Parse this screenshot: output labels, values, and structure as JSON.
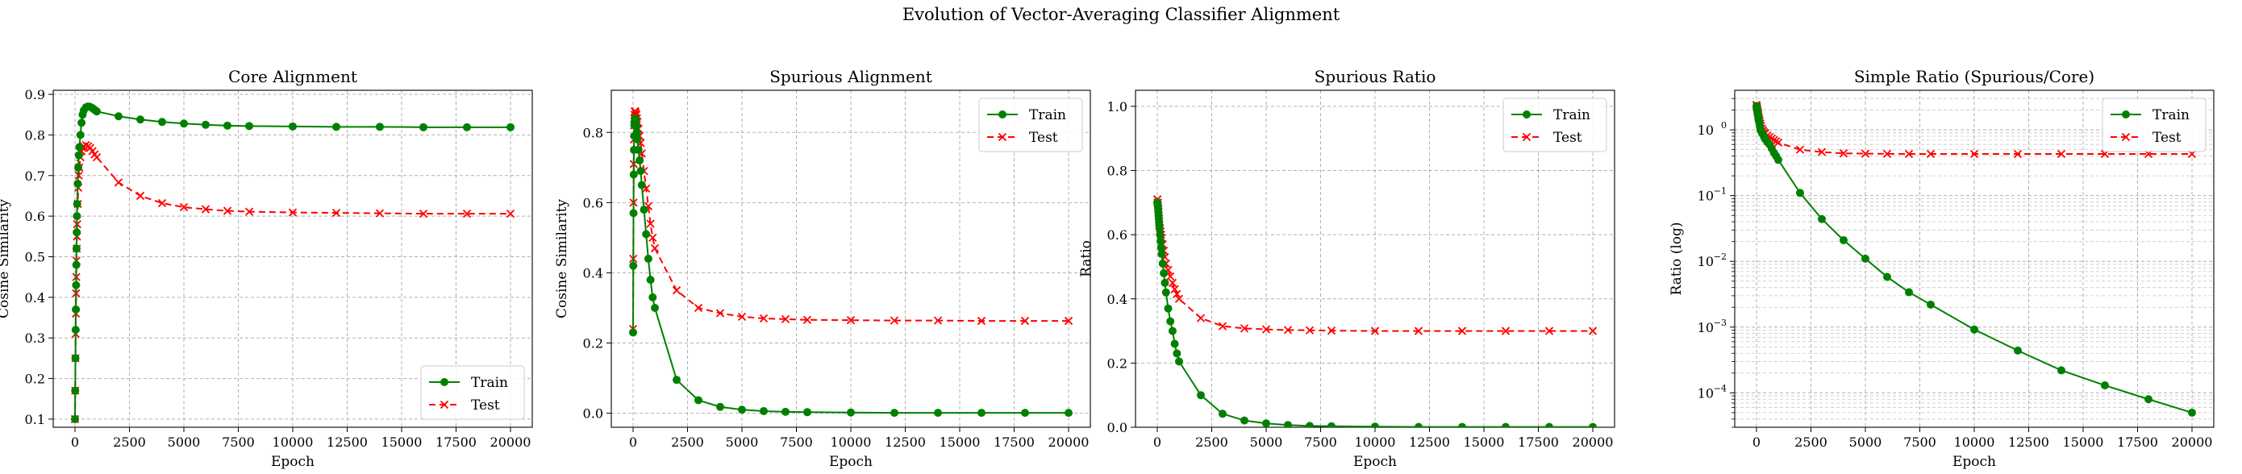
{
  "figure": {
    "title": "Evolution of Vector-Averaging Classifier Alignment"
  },
  "colors": {
    "train": "#008000",
    "test": "#ff0000",
    "grid": "#b0b0b0"
  },
  "chart_data": [
    {
      "type": "line",
      "title": "Core Alignment",
      "xlabel": "Epoch",
      "ylabel": "Cosine Similarity",
      "xlim": [
        -1000,
        21000
      ],
      "ylim": [
        0.08,
        0.91
      ],
      "xticks": [
        0,
        2500,
        5000,
        7500,
        10000,
        12500,
        15000,
        17500,
        20000
      ],
      "xtick_labels": [
        "0",
        "2500",
        "5000",
        "7500",
        "10000",
        "12500",
        "15000",
        "17500",
        "20000"
      ],
      "yticks": [
        0.1,
        0.2,
        0.3,
        0.4,
        0.5,
        0.6,
        0.7,
        0.8,
        0.9
      ],
      "ytick_labels": [
        "0.1",
        "0.2",
        "0.3",
        "0.4",
        "0.5",
        "0.6",
        "0.7",
        "0.8",
        "0.9"
      ],
      "yscale": "linear",
      "grid": true,
      "legend": "lower right",
      "series": [
        {
          "name": "Train",
          "color": "#008000",
          "marker": "circle",
          "linestyle": "solid",
          "x": [
            0,
            10,
            20,
            30,
            40,
            50,
            60,
            70,
            80,
            90,
            100,
            125,
            150,
            175,
            200,
            250,
            300,
            350,
            400,
            500,
            600,
            700,
            800,
            900,
            1000,
            2000,
            3000,
            4000,
            5000,
            6000,
            7000,
            8000,
            10000,
            12000,
            14000,
            16000,
            18000,
            20000
          ],
          "y": [
            0.1,
            0.17,
            0.25,
            0.32,
            0.37,
            0.43,
            0.48,
            0.52,
            0.56,
            0.6,
            0.63,
            0.68,
            0.72,
            0.75,
            0.77,
            0.8,
            0.83,
            0.85,
            0.86,
            0.868,
            0.87,
            0.869,
            0.866,
            0.862,
            0.858,
            0.846,
            0.838,
            0.832,
            0.828,
            0.825,
            0.823,
            0.822,
            0.821,
            0.82,
            0.82,
            0.819,
            0.819,
            0.819
          ]
        },
        {
          "name": "Test",
          "color": "#ff0000",
          "marker": "x",
          "linestyle": "dashed",
          "x": [
            0,
            10,
            20,
            30,
            40,
            50,
            60,
            70,
            80,
            90,
            100,
            125,
            150,
            175,
            200,
            250,
            300,
            350,
            400,
            500,
            600,
            700,
            800,
            900,
            1000,
            2000,
            3000,
            4000,
            5000,
            6000,
            7000,
            8000,
            10000,
            12000,
            14000,
            16000,
            18000,
            20000
          ],
          "y": [
            0.1,
            0.17,
            0.25,
            0.31,
            0.36,
            0.41,
            0.45,
            0.49,
            0.52,
            0.55,
            0.58,
            0.63,
            0.67,
            0.7,
            0.72,
            0.745,
            0.76,
            0.768,
            0.772,
            0.775,
            0.772,
            0.768,
            0.76,
            0.752,
            0.745,
            0.683,
            0.65,
            0.632,
            0.622,
            0.617,
            0.613,
            0.611,
            0.609,
            0.608,
            0.607,
            0.606,
            0.606,
            0.606
          ]
        }
      ]
    },
    {
      "type": "line",
      "title": "Spurious Alignment",
      "xlabel": "Epoch",
      "ylabel": "Cosine Similarity",
      "xlim": [
        -1000,
        21000
      ],
      "ylim": [
        -0.04,
        0.92
      ],
      "xticks": [
        0,
        2500,
        5000,
        7500,
        10000,
        12500,
        15000,
        17500,
        20000
      ],
      "xtick_labels": [
        "0",
        "2500",
        "5000",
        "7500",
        "10000",
        "12500",
        "15000",
        "17500",
        "20000"
      ],
      "yticks": [
        0.0,
        0.2,
        0.4,
        0.6,
        0.8
      ],
      "ytick_labels": [
        "0.0",
        "0.2",
        "0.4",
        "0.6",
        "0.8"
      ],
      "yscale": "linear",
      "grid": true,
      "legend": "upper right",
      "series": [
        {
          "name": "Train",
          "color": "#008000",
          "marker": "circle",
          "linestyle": "solid",
          "x": [
            0,
            10,
            20,
            30,
            40,
            50,
            60,
            70,
            80,
            90,
            100,
            125,
            150,
            175,
            200,
            250,
            300,
            350,
            400,
            500,
            600,
            700,
            800,
            900,
            1000,
            2000,
            3000,
            4000,
            5000,
            6000,
            7000,
            8000,
            10000,
            12000,
            14000,
            16000,
            18000,
            20000
          ],
          "y": [
            0.23,
            0.42,
            0.57,
            0.68,
            0.75,
            0.79,
            0.82,
            0.83,
            0.84,
            0.84,
            0.84,
            0.83,
            0.82,
            0.8,
            0.78,
            0.75,
            0.72,
            0.69,
            0.65,
            0.58,
            0.51,
            0.44,
            0.38,
            0.33,
            0.3,
            0.095,
            0.037,
            0.018,
            0.01,
            0.006,
            0.004,
            0.003,
            0.002,
            0.001,
            0.001,
            0.001,
            0.001,
            0.001
          ]
        },
        {
          "name": "Test",
          "color": "#ff0000",
          "marker": "x",
          "linestyle": "dashed",
          "x": [
            0,
            10,
            20,
            30,
            40,
            50,
            60,
            70,
            80,
            90,
            100,
            125,
            150,
            175,
            200,
            250,
            300,
            350,
            400,
            500,
            600,
            700,
            800,
            900,
            1000,
            2000,
            3000,
            4000,
            5000,
            6000,
            7000,
            8000,
            10000,
            12000,
            14000,
            16000,
            18000,
            20000
          ],
          "y": [
            0.24,
            0.44,
            0.6,
            0.71,
            0.78,
            0.82,
            0.84,
            0.85,
            0.86,
            0.86,
            0.86,
            0.855,
            0.85,
            0.84,
            0.83,
            0.81,
            0.79,
            0.77,
            0.74,
            0.69,
            0.64,
            0.59,
            0.54,
            0.5,
            0.47,
            0.35,
            0.3,
            0.285,
            0.275,
            0.27,
            0.268,
            0.266,
            0.265,
            0.264,
            0.264,
            0.263,
            0.263,
            0.263
          ]
        }
      ]
    },
    {
      "type": "line",
      "title": "Spurious Ratio",
      "xlabel": "Epoch",
      "ylabel": "Ratio",
      "xlim": [
        -1000,
        21000
      ],
      "ylim": [
        0.0,
        1.05
      ],
      "xticks": [
        0,
        2500,
        5000,
        7500,
        10000,
        12500,
        15000,
        17500,
        20000
      ],
      "xtick_labels": [
        "0",
        "2500",
        "5000",
        "7500",
        "10000",
        "12500",
        "15000",
        "17500",
        "20000"
      ],
      "yticks": [
        0.0,
        0.2,
        0.4,
        0.6,
        0.8,
        1.0
      ],
      "ytick_labels": [
        "0.0",
        "0.2",
        "0.4",
        "0.6",
        "0.8",
        "1.0"
      ],
      "yscale": "linear",
      "grid": true,
      "legend": "upper right",
      "series": [
        {
          "name": "Train",
          "color": "#008000",
          "marker": "circle",
          "linestyle": "solid",
          "x": [
            0,
            10,
            20,
            30,
            40,
            50,
            60,
            70,
            80,
            90,
            100,
            125,
            150,
            175,
            200,
            250,
            300,
            350,
            400,
            500,
            600,
            700,
            800,
            900,
            1000,
            2000,
            3000,
            4000,
            5000,
            6000,
            7000,
            8000,
            10000,
            12000,
            14000,
            16000,
            18000,
            20000
          ],
          "y": [
            0.7,
            0.7,
            0.69,
            0.69,
            0.68,
            0.67,
            0.66,
            0.65,
            0.64,
            0.63,
            0.62,
            0.6,
            0.58,
            0.56,
            0.54,
            0.51,
            0.48,
            0.45,
            0.42,
            0.37,
            0.33,
            0.3,
            0.26,
            0.23,
            0.205,
            0.1,
            0.042,
            0.021,
            0.012,
            0.007,
            0.004,
            0.003,
            0.002,
            0.001,
            0.001,
            0.001,
            0.001,
            0.001
          ]
        },
        {
          "name": "Test",
          "color": "#ff0000",
          "marker": "x",
          "linestyle": "dashed",
          "x": [
            0,
            10,
            20,
            30,
            40,
            50,
            60,
            70,
            80,
            90,
            100,
            125,
            150,
            175,
            200,
            250,
            300,
            350,
            400,
            500,
            600,
            700,
            800,
            900,
            1000,
            2000,
            3000,
            4000,
            5000,
            6000,
            7000,
            8000,
            10000,
            12000,
            14000,
            16000,
            18000,
            20000
          ],
          "y": [
            0.71,
            0.71,
            0.7,
            0.7,
            0.69,
            0.68,
            0.67,
            0.66,
            0.65,
            0.64,
            0.63,
            0.62,
            0.61,
            0.6,
            0.59,
            0.57,
            0.55,
            0.53,
            0.51,
            0.49,
            0.47,
            0.45,
            0.43,
            0.415,
            0.4,
            0.34,
            0.315,
            0.308,
            0.305,
            0.303,
            0.302,
            0.301,
            0.3,
            0.3,
            0.3,
            0.3,
            0.3,
            0.3
          ]
        }
      ]
    },
    {
      "type": "line",
      "title": "Simple Ratio (Spurious/Core)",
      "xlabel": "Epoch",
      "ylabel": "Ratio (log)",
      "xlim": [
        -1000,
        21000
      ],
      "ylim": [
        3e-05,
        4.0
      ],
      "xticks": [
        0,
        2500,
        5000,
        7500,
        10000,
        12500,
        15000,
        17500,
        20000
      ],
      "xtick_labels": [
        "0",
        "2500",
        "5000",
        "7500",
        "10000",
        "12500",
        "15000",
        "17500",
        "20000"
      ],
      "yticks": [
        0.0001,
        0.001,
        0.01,
        0.1,
        1
      ],
      "ytick_labels": [
        "10",
        "10",
        "10",
        "10",
        "10"
      ],
      "ytick_exponents": [
        "−4",
        "−3",
        "−2",
        "−1",
        "0"
      ],
      "yscale": "log",
      "grid": true,
      "legend": "upper right",
      "series": [
        {
          "name": "Train",
          "color": "#008000",
          "marker": "circle",
          "linestyle": "solid",
          "x": [
            0,
            10,
            20,
            30,
            40,
            50,
            60,
            70,
            80,
            90,
            100,
            125,
            150,
            175,
            200,
            250,
            300,
            350,
            400,
            500,
            600,
            700,
            800,
            900,
            1000,
            2000,
            3000,
            4000,
            5000,
            6000,
            7000,
            8000,
            10000,
            12000,
            14000,
            16000,
            18000,
            20000
          ],
          "y": [
            2.3,
            2.3,
            2.2,
            2.1,
            2.0,
            1.9,
            1.8,
            1.7,
            1.6,
            1.5,
            1.4,
            1.3,
            1.15,
            1.05,
            0.98,
            0.9,
            0.85,
            0.78,
            0.72,
            0.65,
            0.6,
            0.52,
            0.45,
            0.4,
            0.35,
            0.11,
            0.044,
            0.021,
            0.011,
            0.0058,
            0.0034,
            0.0022,
            0.00092,
            0.00044,
            0.00022,
            0.00013,
            8e-05,
            5e-05
          ]
        },
        {
          "name": "Test",
          "color": "#ff0000",
          "marker": "x",
          "linestyle": "dashed",
          "x": [
            0,
            10,
            20,
            30,
            40,
            50,
            60,
            70,
            80,
            90,
            100,
            125,
            150,
            175,
            200,
            250,
            300,
            350,
            400,
            500,
            600,
            700,
            800,
            900,
            1000,
            2000,
            3000,
            4000,
            5000,
            6000,
            7000,
            8000,
            10000,
            12000,
            14000,
            16000,
            18000,
            20000
          ],
          "y": [
            2.4,
            2.3,
            2.2,
            2.1,
            2.0,
            1.9,
            1.85,
            1.8,
            1.7,
            1.6,
            1.55,
            1.45,
            1.35,
            1.25,
            1.15,
            1.05,
            0.98,
            0.92,
            0.88,
            0.82,
            0.78,
            0.74,
            0.7,
            0.67,
            0.64,
            0.5,
            0.46,
            0.44,
            0.435,
            0.432,
            0.43,
            0.43,
            0.43,
            0.43,
            0.43,
            0.43,
            0.43,
            0.43
          ]
        }
      ]
    }
  ]
}
